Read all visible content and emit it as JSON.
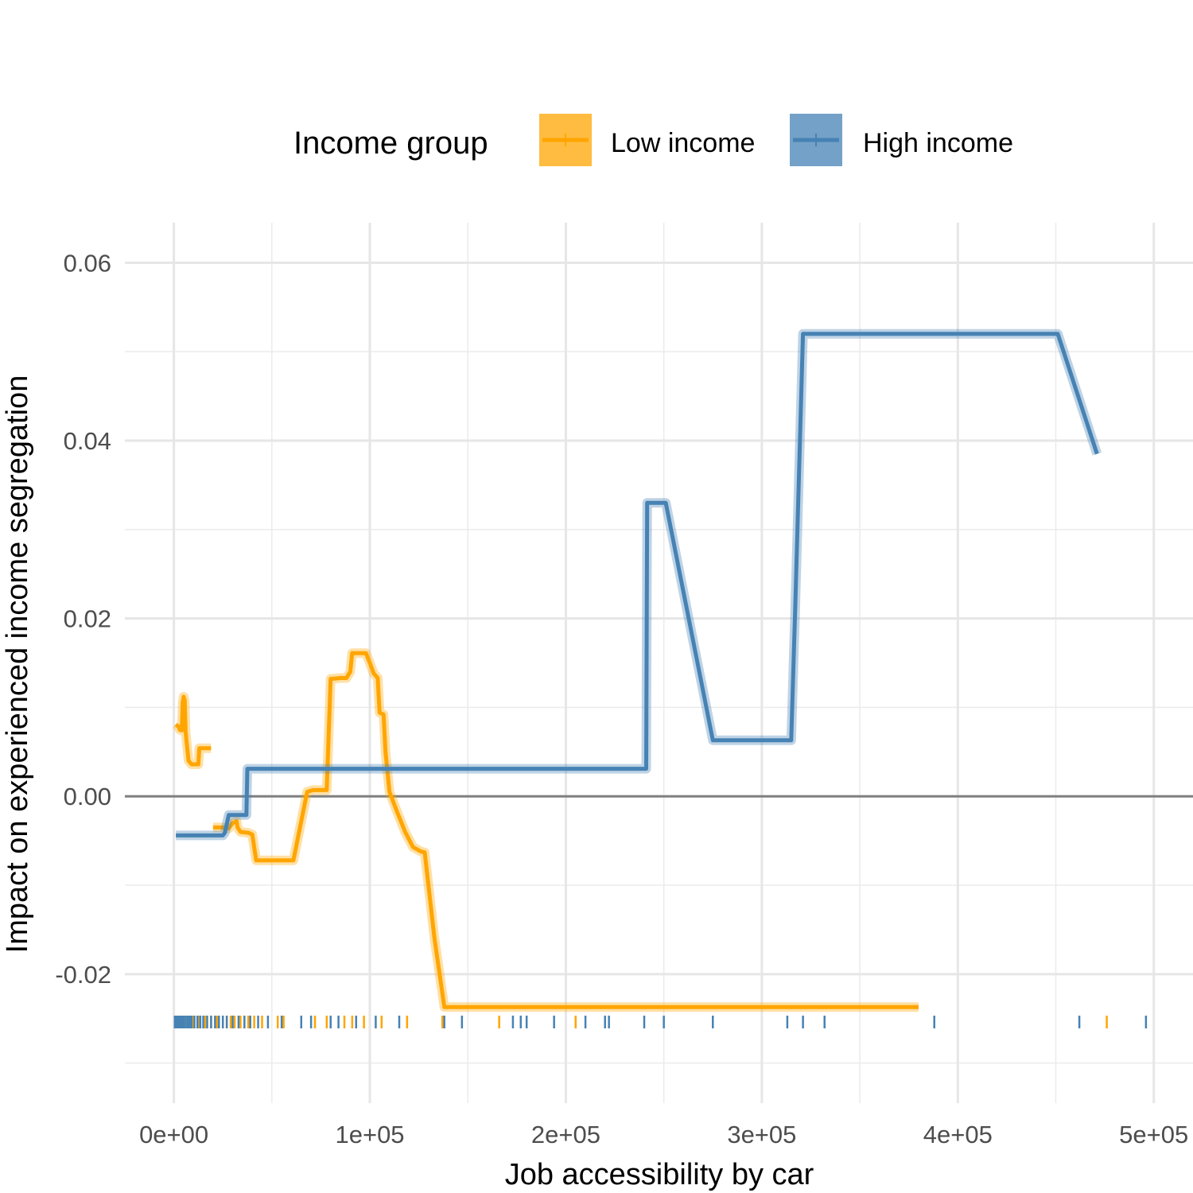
{
  "chart_data": {
    "type": "line",
    "xlabel": "Job accessibility by car",
    "ylabel": "Impact on experienced income segregation",
    "xlim": [
      -25000,
      520000
    ],
    "ylim": [
      -0.0345,
      0.0645
    ],
    "x_ticks": [
      0,
      100000,
      200000,
      300000,
      400000,
      500000
    ],
    "x_tick_labels": [
      "0e+00",
      "1e+05",
      "2e+05",
      "3e+05",
      "4e+05",
      "5e+05"
    ],
    "y_ticks": [
      -0.02,
      0,
      0.02,
      0.04,
      0.06
    ],
    "y_tick_labels": [
      "-0.02",
      "0.00",
      "0.02",
      "0.04",
      "0.06"
    ],
    "y_minor_ticks": [
      -0.03,
      -0.01,
      0.01,
      0.03,
      0.05
    ],
    "x_minor_ticks": [
      50000,
      150000,
      250000,
      350000,
      450000
    ],
    "grid": true,
    "reference_line_y": 0,
    "legend": {
      "title": "Income group",
      "position": "top",
      "entries": [
        "Low income",
        "High income"
      ]
    },
    "series": [
      {
        "name": "Low income",
        "color": "#FFA500",
        "segments": [
          [
            [
              1000,
              0.0081
            ],
            [
              2500,
              0.0078
            ],
            [
              3000,
              0.0075
            ],
            [
              4000,
              0.0074
            ],
            [
              4500,
              0.0105
            ],
            [
              5000,
              0.0112
            ],
            [
              5500,
              0.0108
            ],
            [
              6000,
              0.0072
            ],
            [
              7500,
              0.004
            ],
            [
              9000,
              0.0036
            ],
            [
              11000,
              0.0036
            ],
            [
              12500,
              0.0036
            ],
            [
              13000,
              0.0054
            ],
            [
              15000,
              0.0054
            ],
            [
              19000,
              0.0054
            ]
          ],
          [
            [
              20000,
              -0.0035
            ],
            [
              25000,
              -0.0035
            ],
            [
              28000,
              -0.0036
            ],
            [
              30000,
              -0.003
            ],
            [
              32000,
              -0.0028
            ],
            [
              32500,
              -0.0035
            ],
            [
              34000,
              -0.004
            ],
            [
              38000,
              -0.0041
            ],
            [
              40000,
              -0.0043
            ],
            [
              42000,
              -0.0072
            ],
            [
              50000,
              -0.0072
            ],
            [
              55000,
              -0.0072
            ],
            [
              61000,
              -0.0072
            ],
            [
              68000,
              0.0005
            ],
            [
              71000,
              0.0007
            ],
            [
              75000,
              0.0007
            ],
            [
              78000,
              0.0007
            ],
            [
              80000,
              0.0132
            ],
            [
              85000,
              0.0133
            ],
            [
              88000,
              0.0133
            ],
            [
              90000,
              0.014
            ],
            [
              91000,
              0.0161
            ],
            [
              95000,
              0.0161
            ],
            [
              98000,
              0.0161
            ],
            [
              100000,
              0.015
            ],
            [
              102000,
              0.0138
            ],
            [
              104000,
              0.0133
            ],
            [
              105000,
              0.0094
            ],
            [
              107000,
              0.0092
            ],
            [
              108000,
              0.005
            ],
            [
              110000,
              0.0005
            ],
            [
              114000,
              -0.0018
            ],
            [
              118000,
              -0.004
            ],
            [
              122000,
              -0.0057
            ],
            [
              126000,
              -0.0062
            ],
            [
              128000,
              -0.0063
            ],
            [
              133000,
              -0.016
            ],
            [
              138000,
              -0.0237
            ],
            [
              160000,
              -0.0237
            ],
            [
              200000,
              -0.0237
            ],
            [
              250000,
              -0.0237
            ],
            [
              300000,
              -0.0237
            ],
            [
              350000,
              -0.0237
            ],
            [
              380000,
              -0.0237
            ]
          ]
        ]
      },
      {
        "name": "High income",
        "color": "#4682B4",
        "segments": [
          [
            [
              1000,
              -0.0044
            ],
            [
              10000,
              -0.0044
            ],
            [
              20000,
              -0.0044
            ],
            [
              25000,
              -0.0044
            ],
            [
              26000,
              -0.0041
            ],
            [
              28000,
              -0.0021
            ],
            [
              32000,
              -0.0021
            ],
            [
              37000,
              -0.0021
            ],
            [
              37500,
              0.0031
            ],
            [
              50000,
              0.0031
            ],
            [
              100000,
              0.0031
            ],
            [
              150000,
              0.0031
            ],
            [
              200000,
              0.0031
            ],
            [
              241000,
              0.0031
            ],
            [
              241500,
              0.033
            ],
            [
              250000,
              0.033
            ],
            [
              251000,
              0.033
            ],
            [
              275000,
              0.0063
            ],
            [
              290000,
              0.0063
            ],
            [
              300000,
              0.0063
            ],
            [
              315000,
              0.0063
            ],
            [
              317000,
              0.021
            ],
            [
              321000,
              0.052
            ],
            [
              350000,
              0.052
            ],
            [
              400000,
              0.052
            ],
            [
              451000,
              0.052
            ],
            [
              471000,
              0.0385
            ]
          ]
        ]
      }
    ],
    "rug": {
      "Low income": [
        700,
        1500,
        2500,
        3500,
        4500,
        6000,
        8000,
        10000,
        13000,
        16000,
        19000,
        22000,
        25000,
        27000,
        29000,
        31000,
        34000,
        38000,
        41000,
        45000,
        53000,
        56000,
        72000,
        78000,
        87000,
        91000,
        97000,
        106000,
        119000,
        137000,
        166000,
        205000,
        476000
      ],
      "High income": [
        500,
        1000,
        1800,
        2600,
        3400,
        4200,
        5000,
        6000,
        7000,
        8000,
        9000,
        10500,
        12000,
        13500,
        15000,
        17000,
        19000,
        21000,
        23000,
        25000,
        27000,
        30000,
        33000,
        36000,
        39000,
        43000,
        48000,
        55000,
        65000,
        70000,
        80000,
        84000,
        93000,
        103000,
        115000,
        138000,
        147000,
        173000,
        177000,
        180000,
        194000,
        210000,
        220000,
        222000,
        240000,
        250000,
        275000,
        313000,
        321000,
        332000,
        388000,
        462000,
        496000
      ]
    }
  }
}
